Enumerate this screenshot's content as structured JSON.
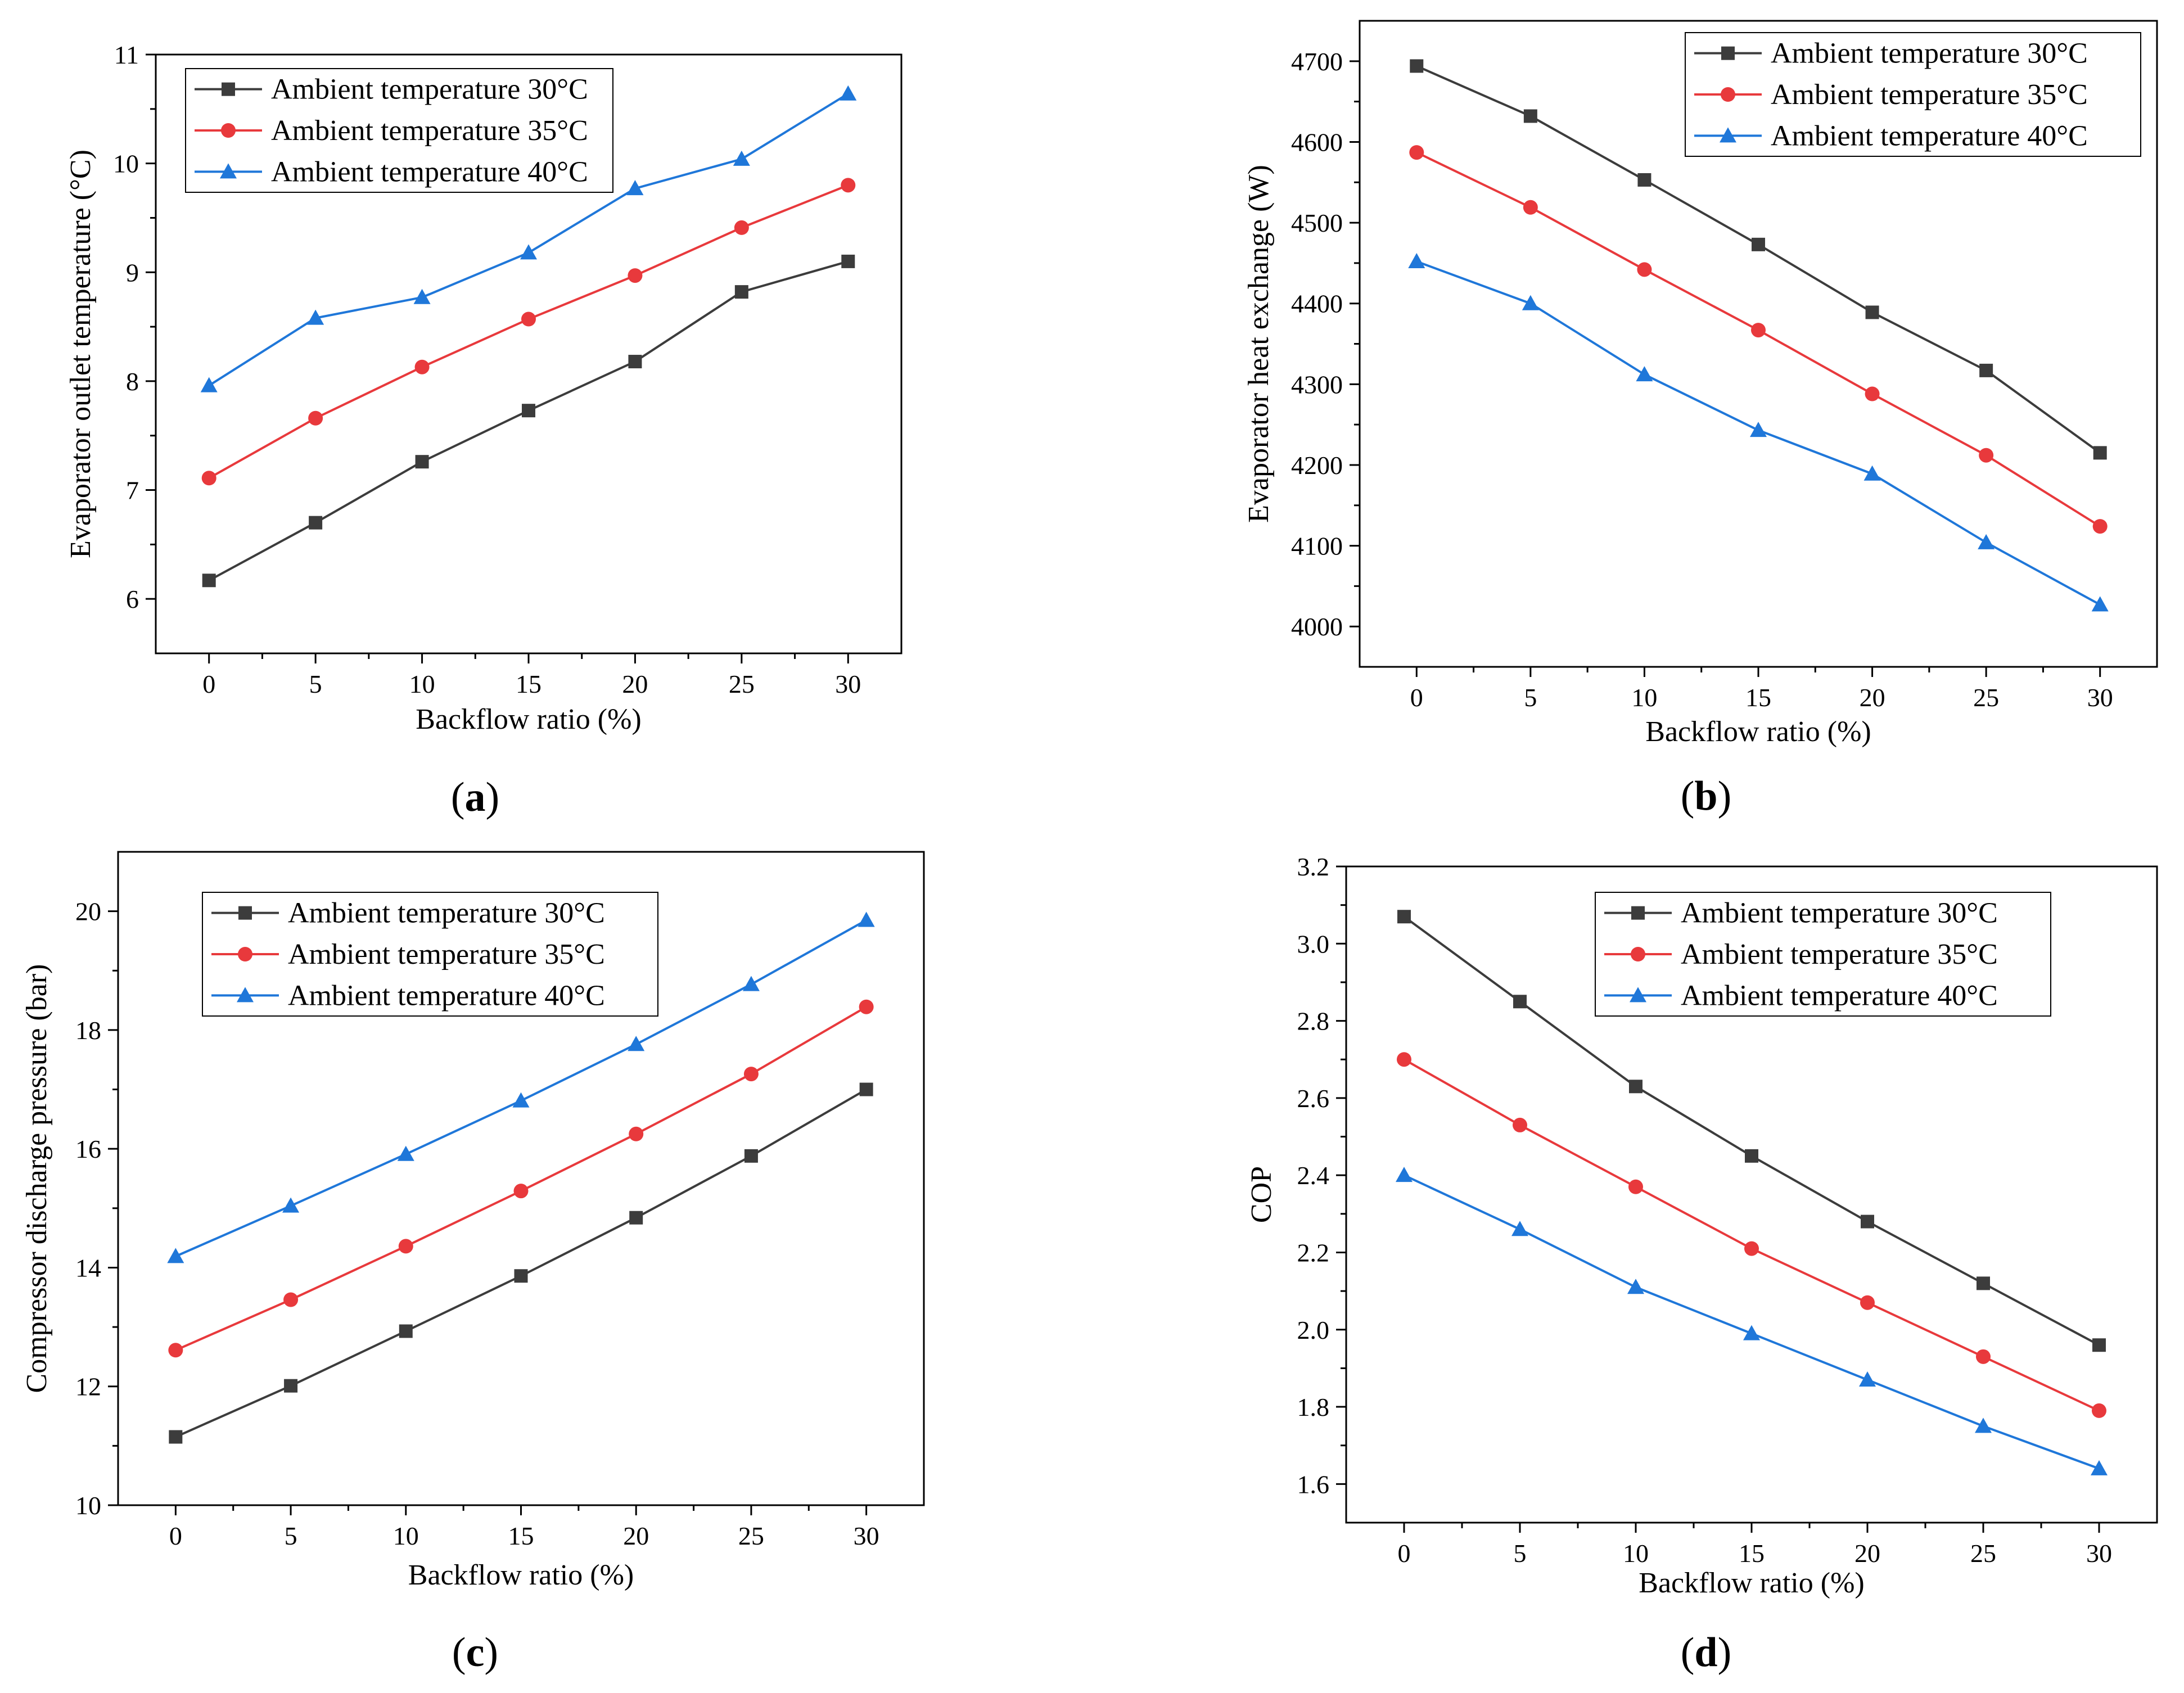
{
  "figure": {
    "panel_labels": [
      {
        "open": "(",
        "letter": "a",
        "close": ")"
      },
      {
        "open": "(",
        "letter": "b",
        "close": ")"
      },
      {
        "open": "(",
        "letter": "c",
        "close": ")"
      },
      {
        "open": "(",
        "letter": "d",
        "close": ")"
      }
    ]
  },
  "chart_data": [
    {
      "type": "line",
      "xlabel": "Backflow ratio (%)",
      "ylabel": "Evaporator outlet temperature (°C)",
      "x": [
        0,
        5,
        10,
        15,
        20,
        25,
        30
      ],
      "xlim": [
        -2.5,
        32.5
      ],
      "ylim": [
        5.5,
        11
      ],
      "xticks": [
        0,
        5,
        10,
        15,
        20,
        25,
        30
      ],
      "yticks": [
        6,
        7,
        8,
        9,
        10,
        11
      ],
      "legend_position": "top-left",
      "series": [
        {
          "name": "Ambient temperature 30°C",
          "color": "#3c3c3c",
          "marker": "square",
          "values": [
            6.17,
            6.7,
            7.26,
            7.73,
            8.18,
            8.82,
            9.1
          ]
        },
        {
          "name": "Ambient temperature 35°C",
          "color": "#e8393c",
          "marker": "circle",
          "values": [
            7.11,
            7.66,
            8.13,
            8.57,
            8.97,
            9.41,
            9.8
          ]
        },
        {
          "name": "Ambient temperature 40°C",
          "color": "#1f77d9",
          "marker": "triangle",
          "values": [
            7.96,
            8.58,
            8.77,
            9.18,
            9.77,
            10.04,
            10.64
          ]
        }
      ]
    },
    {
      "type": "line",
      "xlabel": "Backflow ratio (%)",
      "ylabel": "Evaporator heat exchange (W)",
      "x": [
        0,
        5,
        10,
        15,
        20,
        25,
        30
      ],
      "xlim": [
        -2.5,
        32.5
      ],
      "ylim": [
        3950,
        4750
      ],
      "xticks": [
        0,
        5,
        10,
        15,
        20,
        25,
        30
      ],
      "yticks": [
        4000,
        4100,
        4200,
        4300,
        4400,
        4500,
        4600,
        4700
      ],
      "legend_position": "top-right",
      "series": [
        {
          "name": "Ambient temperature 30°C",
          "color": "#3c3c3c",
          "marker": "square",
          "values": [
            4694,
            4632,
            4553,
            4473,
            4389,
            4317,
            4215
          ]
        },
        {
          "name": "Ambient temperature 35°C",
          "color": "#e8393c",
          "marker": "circle",
          "values": [
            4587,
            4519,
            4442,
            4367,
            4288,
            4212,
            4124
          ]
        },
        {
          "name": "Ambient temperature 40°C",
          "color": "#1f77d9",
          "marker": "triangle",
          "values": [
            4452,
            4400,
            4312,
            4243,
            4189,
            4104,
            4027
          ]
        }
      ]
    },
    {
      "type": "line",
      "xlabel": "Backflow ratio (%)",
      "ylabel": "Compressor discharge pressure (bar)",
      "x": [
        0,
        5,
        10,
        15,
        20,
        25,
        30
      ],
      "xlim": [
        -2.5,
        32.5
      ],
      "ylim": [
        10,
        21
      ],
      "xticks": [
        0,
        5,
        10,
        15,
        20,
        25,
        30
      ],
      "yticks": [
        10,
        12,
        14,
        16,
        18,
        20
      ],
      "legend_position": "top-center",
      "series": [
        {
          "name": "Ambient temperature 30°C",
          "color": "#3c3c3c",
          "marker": "square",
          "values": [
            11.15,
            12.01,
            12.93,
            13.86,
            14.84,
            15.88,
            17.0
          ]
        },
        {
          "name": "Ambient temperature 35°C",
          "color": "#e8393c",
          "marker": "circle",
          "values": [
            12.61,
            13.46,
            14.36,
            15.29,
            16.25,
            17.26,
            18.39
          ]
        },
        {
          "name": "Ambient temperature 40°C",
          "color": "#1f77d9",
          "marker": "triangle",
          "values": [
            14.19,
            15.04,
            15.91,
            16.81,
            17.76,
            18.77,
            19.85
          ]
        }
      ]
    },
    {
      "type": "line",
      "xlabel": "Backflow ratio (%)",
      "ylabel": "COP",
      "x": [
        0,
        5,
        10,
        15,
        20,
        25,
        30
      ],
      "xlim": [
        -2.5,
        32.5
      ],
      "ylim": [
        1.5,
        3.2
      ],
      "xticks": [
        0,
        5,
        10,
        15,
        20,
        25,
        30
      ],
      "yticks": [
        1.6,
        1.8,
        2.0,
        2.2,
        2.4,
        2.6,
        2.8,
        3.0,
        3.2
      ],
      "ytick_labels": [
        "1.6",
        "1.8",
        "2.0",
        "2.2",
        "2.4",
        "2.6",
        "2.8",
        "3.0",
        "3.2"
      ],
      "legend_position": "top-center",
      "series": [
        {
          "name": "Ambient temperature 30°C",
          "color": "#3c3c3c",
          "marker": "square",
          "values": [
            3.07,
            2.85,
            2.63,
            2.45,
            2.28,
            2.12,
            1.96
          ]
        },
        {
          "name": "Ambient temperature 35°C",
          "color": "#e8393c",
          "marker": "circle",
          "values": [
            2.7,
            2.53,
            2.37,
            2.21,
            2.07,
            1.93,
            1.79
          ]
        },
        {
          "name": "Ambient temperature 40°C",
          "color": "#1f77d9",
          "marker": "triangle",
          "values": [
            2.4,
            2.26,
            2.11,
            1.99,
            1.87,
            1.75,
            1.64
          ]
        }
      ]
    }
  ]
}
